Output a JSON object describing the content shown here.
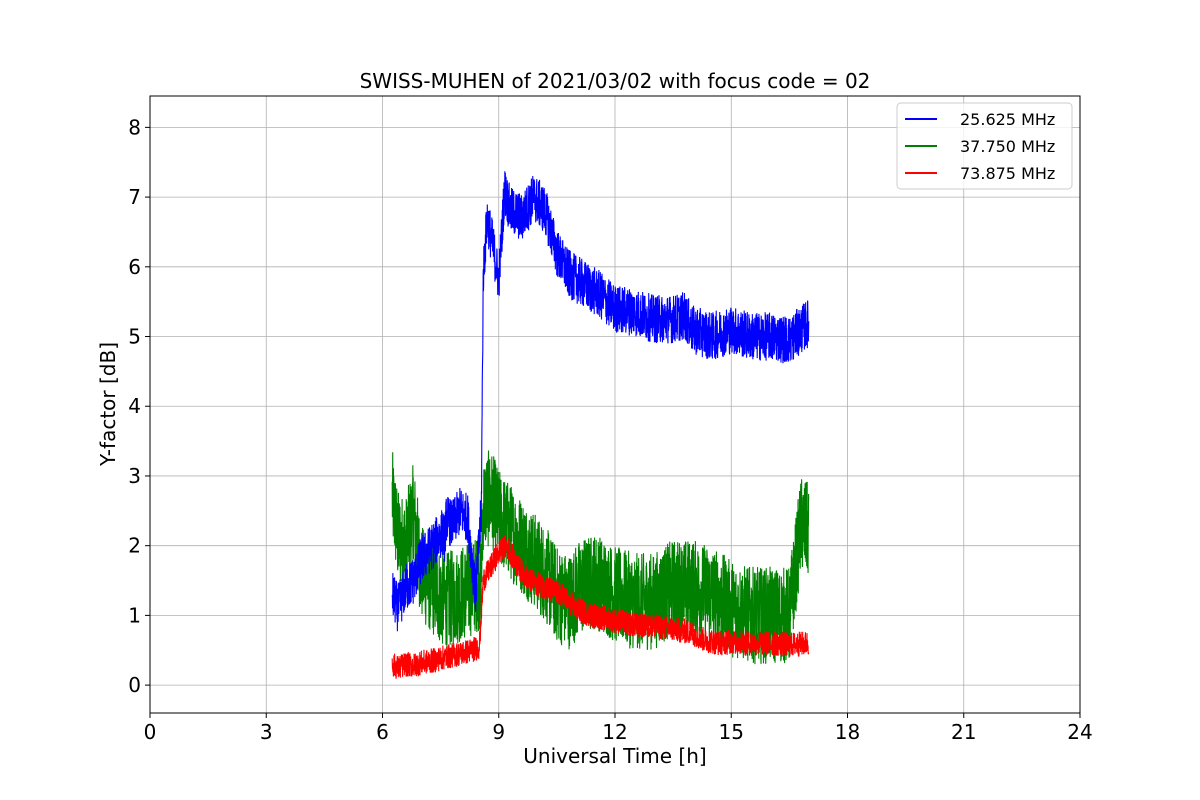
{
  "chart_data": {
    "type": "line",
    "title": "SWISS-MUHEN of 2021/03/02 with focus code = 02",
    "xlabel": "Universal Time [h]",
    "ylabel": "Y-factor [dB]",
    "xlim": [
      0,
      24
    ],
    "ylim": [
      -0.4,
      8.45
    ],
    "xticks": [
      0,
      3,
      6,
      9,
      12,
      15,
      18,
      21,
      24
    ],
    "yticks": [
      0,
      1,
      2,
      3,
      4,
      5,
      6,
      7,
      8
    ],
    "grid": true,
    "legend_position": "top-right",
    "series": [
      {
        "name": "25.625 MHz",
        "color": "#0000ff",
        "x": [
          6.25,
          6.4,
          6.6,
          6.8,
          7.0,
          7.3,
          7.55,
          7.6,
          7.65,
          7.8,
          8.0,
          8.2,
          8.4,
          8.55,
          8.6,
          8.7,
          8.85,
          9.0,
          9.15,
          9.3,
          9.6,
          9.9,
          10.2,
          10.5,
          10.8,
          11.2,
          11.6,
          12.0,
          12.5,
          13.0,
          13.5,
          13.8,
          14.0,
          14.5,
          15.0,
          15.5,
          16.0,
          16.5,
          17.0
        ],
        "y": [
          1.3,
          1.1,
          1.4,
          1.5,
          1.8,
          2.0,
          2.2,
          2.1,
          2.4,
          2.3,
          2.5,
          2.4,
          1.3,
          2.5,
          5.9,
          6.7,
          6.3,
          5.8,
          7.1,
          6.8,
          6.7,
          7.0,
          6.8,
          6.2,
          5.9,
          5.75,
          5.6,
          5.4,
          5.35,
          5.25,
          5.25,
          5.3,
          5.1,
          5.0,
          5.1,
          5.0,
          5.0,
          4.95,
          5.2
        ]
      },
      {
        "name": "37.750 MHz",
        "color": "#008000",
        "x": [
          6.25,
          6.4,
          6.6,
          6.8,
          7.0,
          7.3,
          7.6,
          8.0,
          8.3,
          8.55,
          8.6,
          8.8,
          9.0,
          9.3,
          9.6,
          9.9,
          10.2,
          10.5,
          10.8,
          11.1,
          11.5,
          12.0,
          12.5,
          13.0,
          13.5,
          14.0,
          14.5,
          15.0,
          15.5,
          16.0,
          16.5,
          16.8,
          17.0
        ],
        "y": [
          2.7,
          2.1,
          2.0,
          2.5,
          1.6,
          1.4,
          1.2,
          1.3,
          1.4,
          1.5,
          2.6,
          2.7,
          2.4,
          2.2,
          2.0,
          1.8,
          1.6,
          1.3,
          1.2,
          1.4,
          1.5,
          1.3,
          1.2,
          1.2,
          1.4,
          1.4,
          1.3,
          1.1,
          1.0,
          1.0,
          1.0,
          2.3,
          2.2
        ]
      },
      {
        "name": "73.875 MHz",
        "color": "#ff0000",
        "x": [
          6.25,
          6.4,
          6.6,
          6.8,
          7.0,
          7.3,
          7.6,
          8.0,
          8.3,
          8.5,
          8.6,
          8.8,
          9.0,
          9.2,
          9.5,
          9.8,
          10.2,
          10.6,
          11.0,
          11.4,
          11.8,
          12.2,
          12.6,
          13.0,
          13.5,
          14.0,
          14.3,
          14.7,
          15.0,
          15.5,
          16.0,
          16.5,
          17.0
        ],
        "y": [
          0.3,
          0.25,
          0.3,
          0.28,
          0.32,
          0.35,
          0.4,
          0.45,
          0.5,
          0.55,
          1.5,
          1.7,
          1.9,
          2.0,
          1.7,
          1.5,
          1.4,
          1.3,
          1.1,
          1.0,
          0.95,
          0.9,
          0.85,
          0.85,
          0.8,
          0.75,
          0.65,
          0.6,
          0.62,
          0.6,
          0.6,
          0.58,
          0.6
        ]
      }
    ]
  }
}
